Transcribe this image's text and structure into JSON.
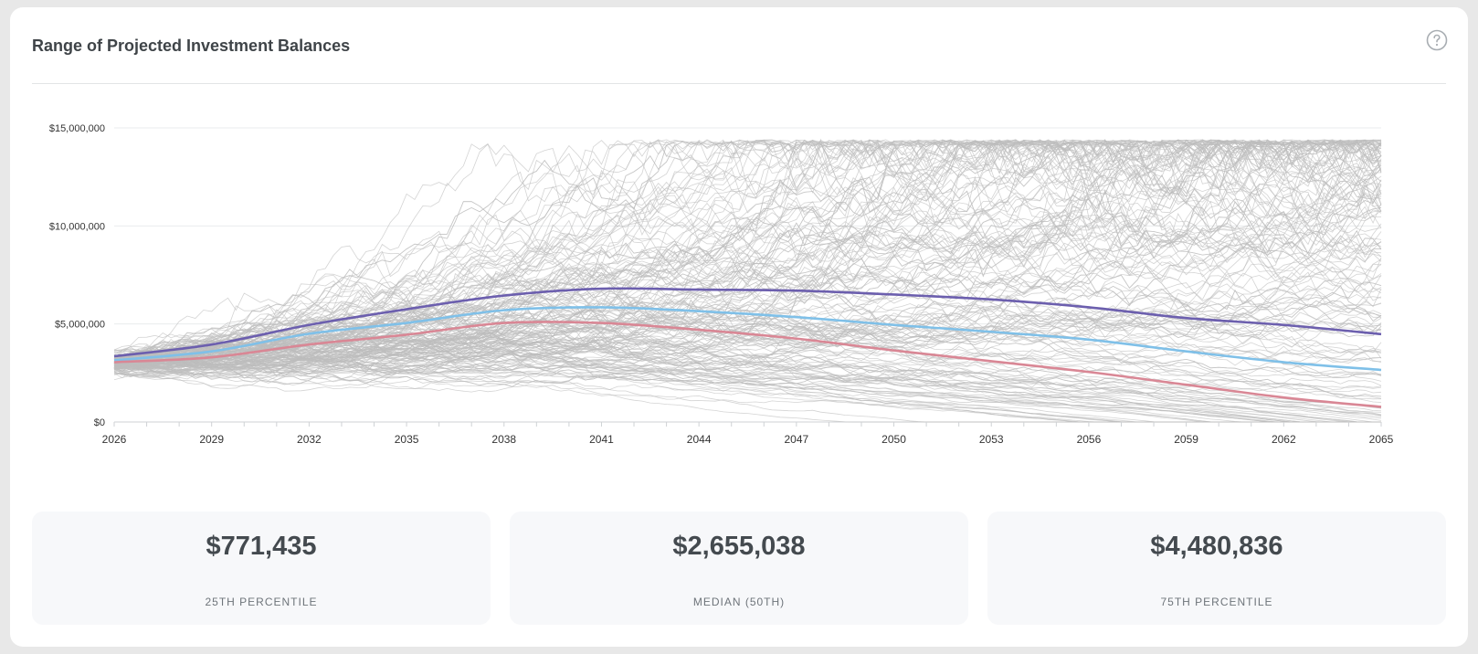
{
  "header": {
    "title": "Range of Projected Investment Balances",
    "help_icon": "question-circle-icon"
  },
  "chart_data": {
    "type": "line",
    "title": "Range of Projected Investment Balances",
    "xlabel": "",
    "ylabel": "",
    "xlim": [
      2026,
      2065
    ],
    "ylim": [
      0,
      15000000
    ],
    "x_ticks": [
      "2026",
      "2029",
      "2032",
      "2035",
      "2038",
      "2041",
      "2044",
      "2047",
      "2050",
      "2053",
      "2056",
      "2059",
      "2062",
      "2065"
    ],
    "y_ticks": [
      "$0",
      "$5,000,000",
      "$10,000,000",
      "$15,000,000"
    ],
    "grid": "horizontal",
    "legend": "none",
    "simulation_paths": {
      "description": "Approximately 200 gray Monte Carlo simulation paths spread between $0 and about $14,500,000",
      "color": "#bdbdbd",
      "count": 200
    },
    "x": [
      2026,
      2029,
      2032,
      2035,
      2038,
      2041,
      2044,
      2047,
      2050,
      2053,
      2056,
      2059,
      2062,
      2065
    ],
    "series": [
      {
        "color": "#6c5fae",
        "values": [
          3350000,
          3950000,
          4950000,
          5750000,
          6450000,
          6800000,
          6750000,
          6700000,
          6500000,
          6250000,
          5850000,
          5300000,
          4950000,
          4480836
        ]
      },
      {
        "color": "#7fc0e8",
        "values": [
          3150000,
          3600000,
          4500000,
          5050000,
          5700000,
          5850000,
          5650000,
          5350000,
          4950000,
          4600000,
          4200000,
          3600000,
          3050000,
          2655038
        ]
      },
      {
        "color": "#d98795",
        "values": [
          3050000,
          3300000,
          3950000,
          4450000,
          5050000,
          5050000,
          4700000,
          4250000,
          3650000,
          3100000,
          2550000,
          1900000,
          1250000,
          771435
        ]
      }
    ]
  },
  "stats": [
    {
      "value": "$771,435",
      "label": "25TH PERCENTILE"
    },
    {
      "value": "$2,655,038",
      "label": "MEDIAN (50TH)"
    },
    {
      "value": "$4,480,836",
      "label": "75TH PERCENTILE"
    }
  ]
}
